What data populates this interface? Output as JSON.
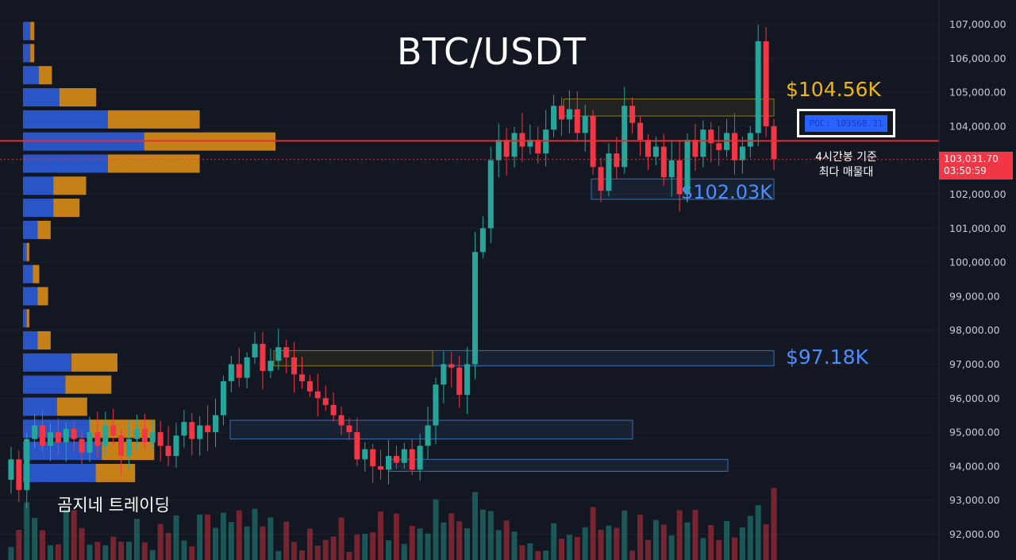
{
  "title": "BTC/USDT",
  "annotations": {
    "level_high": "$104.56K",
    "level_mid": "$102.03K",
    "level_low": "$97.18K",
    "poc_label": "POC: 103568.31",
    "note_line1": "4시간봉 기준",
    "note_line2": "최다 매물대",
    "watermark": "곰지네 트레이딩"
  },
  "price_tag": {
    "price": "103,031.70",
    "countdown": "03:50:59"
  },
  "colors": {
    "background": "#131722",
    "up": "#26a69a",
    "down": "#f23645",
    "poc_line": "#e03131",
    "profile_blue": "#2c5bd6",
    "profile_orange": "#d68a18",
    "zone_blue": "#3d6fb0",
    "zone_yellow": "#8a7a1a"
  },
  "chart_data": {
    "type": "candlestick",
    "symbol": "BTC/USDT",
    "timeframe": "4h",
    "ylim": [
      91700,
      107500
    ],
    "y_ticks": [
      "107,000.00",
      "106,000.00",
      "105,000.00",
      "104,000.00",
      "103,000.00",
      "102,000.00",
      "101,000.00",
      "100,000.00",
      "99,000.00",
      "98,000.00",
      "97,000.00",
      "96,000.00",
      "95,000.00",
      "94,000.00",
      "93,000.00",
      "92,000.00"
    ],
    "y_tick_values": [
      107000,
      106000,
      105000,
      104000,
      103000,
      102000,
      101000,
      100000,
      99000,
      98000,
      97000,
      96000,
      95000,
      94000,
      93000,
      92000
    ],
    "last_price": 103031.7,
    "poc": 103568.31,
    "levels": {
      "high": 104560,
      "mid": 102030,
      "low": 97180
    },
    "price_path": [
      93600,
      94200,
      93300,
      94800,
      95200,
      94600,
      95000,
      94700,
      95100,
      94800,
      94400,
      95000,
      94600,
      95200,
      94900,
      94300,
      94800,
      95100,
      94700,
      95000,
      94600,
      94300,
      94900,
      95300,
      94800,
      95200,
      95000,
      95500,
      96500,
      97000,
      96600,
      97200,
      97600,
      96800,
      97100,
      97500,
      97200,
      96700,
      96500,
      96200,
      96000,
      95800,
      95500,
      95200,
      95000,
      94200,
      94500,
      94000,
      93900,
      94300,
      94100,
      94500,
      93900,
      94600,
      95200,
      96400,
      97000,
      96900,
      96100,
      97000,
      100300,
      101000,
      103000,
      103600,
      103100,
      103800,
      103400,
      103600,
      103200,
      103900,
      104600,
      104200,
      104500,
      103800,
      104300,
      102800,
      102100,
      103200,
      102800,
      104600,
      104100,
      103600,
      103100,
      103400,
      102500,
      103000,
      102000,
      103600,
      103100,
      103900,
      103500,
      103300,
      103800,
      103000,
      103400,
      103800,
      106500,
      104000,
      103030
    ],
    "volume_profile": [
      {
        "price": 106800,
        "buy": 0.06,
        "sell": 0.03
      },
      {
        "price": 106150,
        "buy": 0.06,
        "sell": 0.03
      },
      {
        "price": 105500,
        "buy": 0.13,
        "sell": 0.1
      },
      {
        "price": 104850,
        "buy": 0.3,
        "sell": 0.28
      },
      {
        "price": 104200,
        "buy": 0.7,
        "sell": 0.7
      },
      {
        "price": 103550,
        "buy": 1.0,
        "sell": 1.0
      },
      {
        "price": 102900,
        "buy": 0.7,
        "sell": 0.7
      },
      {
        "price": 102250,
        "buy": 0.25,
        "sell": 0.25
      },
      {
        "price": 101600,
        "buy": 0.25,
        "sell": 0.2
      },
      {
        "price": 100950,
        "buy": 0.12,
        "sell": 0.1
      },
      {
        "price": 100300,
        "buy": 0.03,
        "sell": 0.02
      },
      {
        "price": 99650,
        "buy": 0.08,
        "sell": 0.05
      },
      {
        "price": 99000,
        "buy": 0.12,
        "sell": 0.08
      },
      {
        "price": 98350,
        "buy": 0.03,
        "sell": 0.02
      },
      {
        "price": 97700,
        "buy": 0.12,
        "sell": 0.1
      },
      {
        "price": 97050,
        "buy": 0.4,
        "sell": 0.35
      },
      {
        "price": 96400,
        "buy": 0.35,
        "sell": 0.35
      },
      {
        "price": 95750,
        "buy": 0.28,
        "sell": 0.23
      },
      {
        "price": 95100,
        "buy": 0.55,
        "sell": 0.5
      },
      {
        "price": 94450,
        "buy": 0.65,
        "sell": 0.4
      },
      {
        "price": 93800,
        "buy": 0.6,
        "sell": 0.3
      }
    ],
    "zones": [
      {
        "color": "yellow",
        "from": 104300,
        "to": 104800
      },
      {
        "color": "blue",
        "from": 101850,
        "to": 102450
      },
      {
        "color": "blue",
        "from": 96950,
        "to": 97400
      },
      {
        "color": "yellow",
        "from": 96950,
        "to": 97400
      },
      {
        "color": "blue",
        "from": 94800,
        "to": 95350
      },
      {
        "color": "blue",
        "from": 93850,
        "to": 94200
      }
    ]
  }
}
